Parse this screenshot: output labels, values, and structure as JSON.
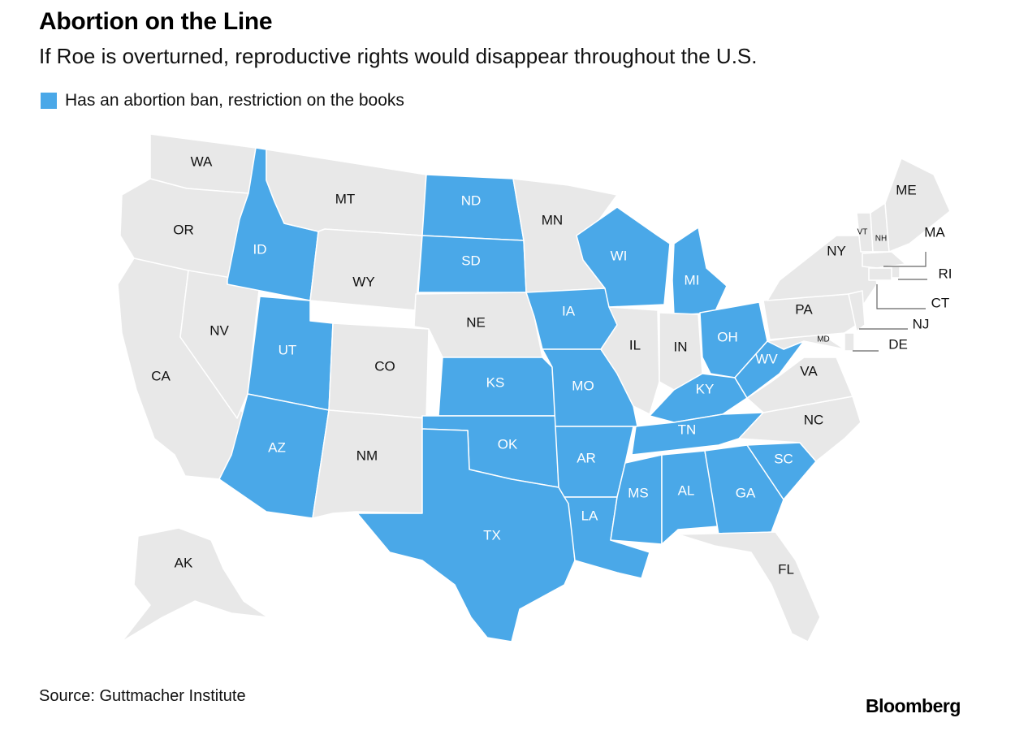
{
  "title": "Abortion on the Line",
  "subtitle": "If Roe is overturned, reproductive rights would disappear throughout the U.S.",
  "legend": {
    "label": "Has an abortion ban, restriction on the books",
    "color": "#4aa8e8"
  },
  "colors": {
    "restricted": "#4aa8e8",
    "other": "#e8e8e8",
    "restricted_text": "#ffffff",
    "other_text": "#111111"
  },
  "source": "Source: Guttmacher Institute",
  "brand": "Bloomberg",
  "states": [
    {
      "abbr": "WA",
      "restricted": false
    },
    {
      "abbr": "OR",
      "restricted": false
    },
    {
      "abbr": "CA",
      "restricted": false
    },
    {
      "abbr": "NV",
      "restricted": false
    },
    {
      "abbr": "ID",
      "restricted": true
    },
    {
      "abbr": "MT",
      "restricted": false
    },
    {
      "abbr": "WY",
      "restricted": false
    },
    {
      "abbr": "UT",
      "restricted": true
    },
    {
      "abbr": "AZ",
      "restricted": true
    },
    {
      "abbr": "CO",
      "restricted": false
    },
    {
      "abbr": "NM",
      "restricted": false
    },
    {
      "abbr": "ND",
      "restricted": true
    },
    {
      "abbr": "SD",
      "restricted": true
    },
    {
      "abbr": "NE",
      "restricted": false
    },
    {
      "abbr": "KS",
      "restricted": true
    },
    {
      "abbr": "OK",
      "restricted": true
    },
    {
      "abbr": "TX",
      "restricted": true
    },
    {
      "abbr": "MN",
      "restricted": false
    },
    {
      "abbr": "IA",
      "restricted": true
    },
    {
      "abbr": "MO",
      "restricted": true
    },
    {
      "abbr": "AR",
      "restricted": true
    },
    {
      "abbr": "LA",
      "restricted": true
    },
    {
      "abbr": "WI",
      "restricted": true
    },
    {
      "abbr": "IL",
      "restricted": false
    },
    {
      "abbr": "MI",
      "restricted": true
    },
    {
      "abbr": "IN",
      "restricted": false
    },
    {
      "abbr": "OH",
      "restricted": true
    },
    {
      "abbr": "KY",
      "restricted": true
    },
    {
      "abbr": "TN",
      "restricted": true
    },
    {
      "abbr": "MS",
      "restricted": true
    },
    {
      "abbr": "AL",
      "restricted": true
    },
    {
      "abbr": "GA",
      "restricted": true
    },
    {
      "abbr": "SC",
      "restricted": true
    },
    {
      "abbr": "FL",
      "restricted": false
    },
    {
      "abbr": "NC",
      "restricted": false
    },
    {
      "abbr": "VA",
      "restricted": false
    },
    {
      "abbr": "WV",
      "restricted": true
    },
    {
      "abbr": "MD",
      "restricted": false
    },
    {
      "abbr": "PA",
      "restricted": false
    },
    {
      "abbr": "NY",
      "restricted": false
    },
    {
      "abbr": "VT",
      "restricted": false
    },
    {
      "abbr": "NH",
      "restricted": false
    },
    {
      "abbr": "ME",
      "restricted": false
    },
    {
      "abbr": "MA",
      "restricted": false
    },
    {
      "abbr": "RI",
      "restricted": false
    },
    {
      "abbr": "CT",
      "restricted": false
    },
    {
      "abbr": "NJ",
      "restricted": false
    },
    {
      "abbr": "DE",
      "restricted": false
    },
    {
      "abbr": "AK",
      "restricted": false
    }
  ]
}
